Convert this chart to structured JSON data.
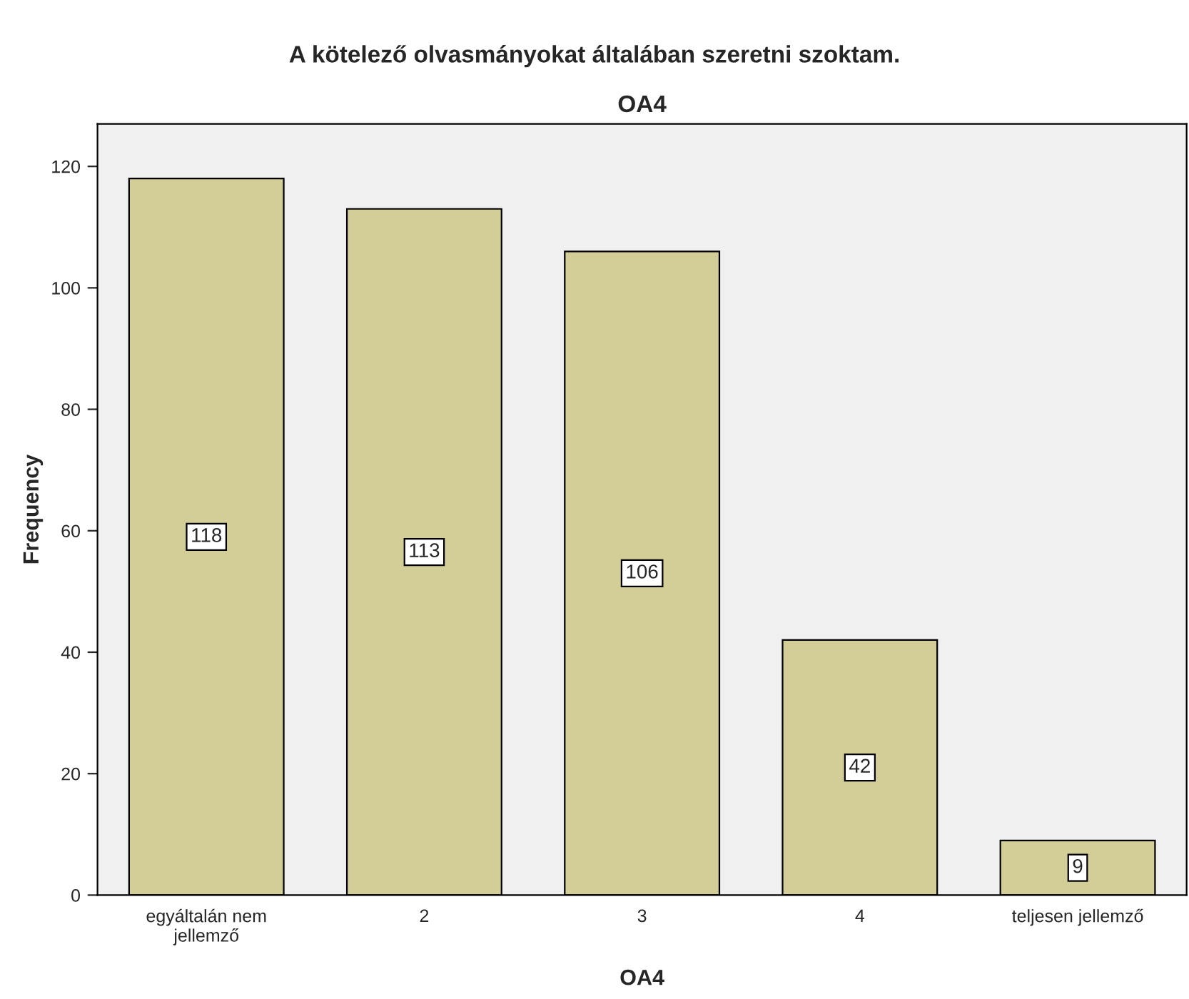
{
  "chart_data": {
    "type": "bar",
    "title": "A kötelező olvasmányokat általában szeretni szoktam.",
    "subtitle": "OA4",
    "xlabel": "OA4",
    "ylabel": "Frequency",
    "categories": [
      "egyáltalán nem\njellemző",
      "2",
      "3",
      "4",
      "teljesen jellemző"
    ],
    "values": [
      118,
      113,
      106,
      42,
      9
    ],
    "color": "#d3ce97",
    "ylim": [
      0,
      127
    ],
    "yticks": [
      0,
      20,
      40,
      60,
      80,
      100,
      120
    ],
    "grid": false,
    "data_labels": true
  }
}
